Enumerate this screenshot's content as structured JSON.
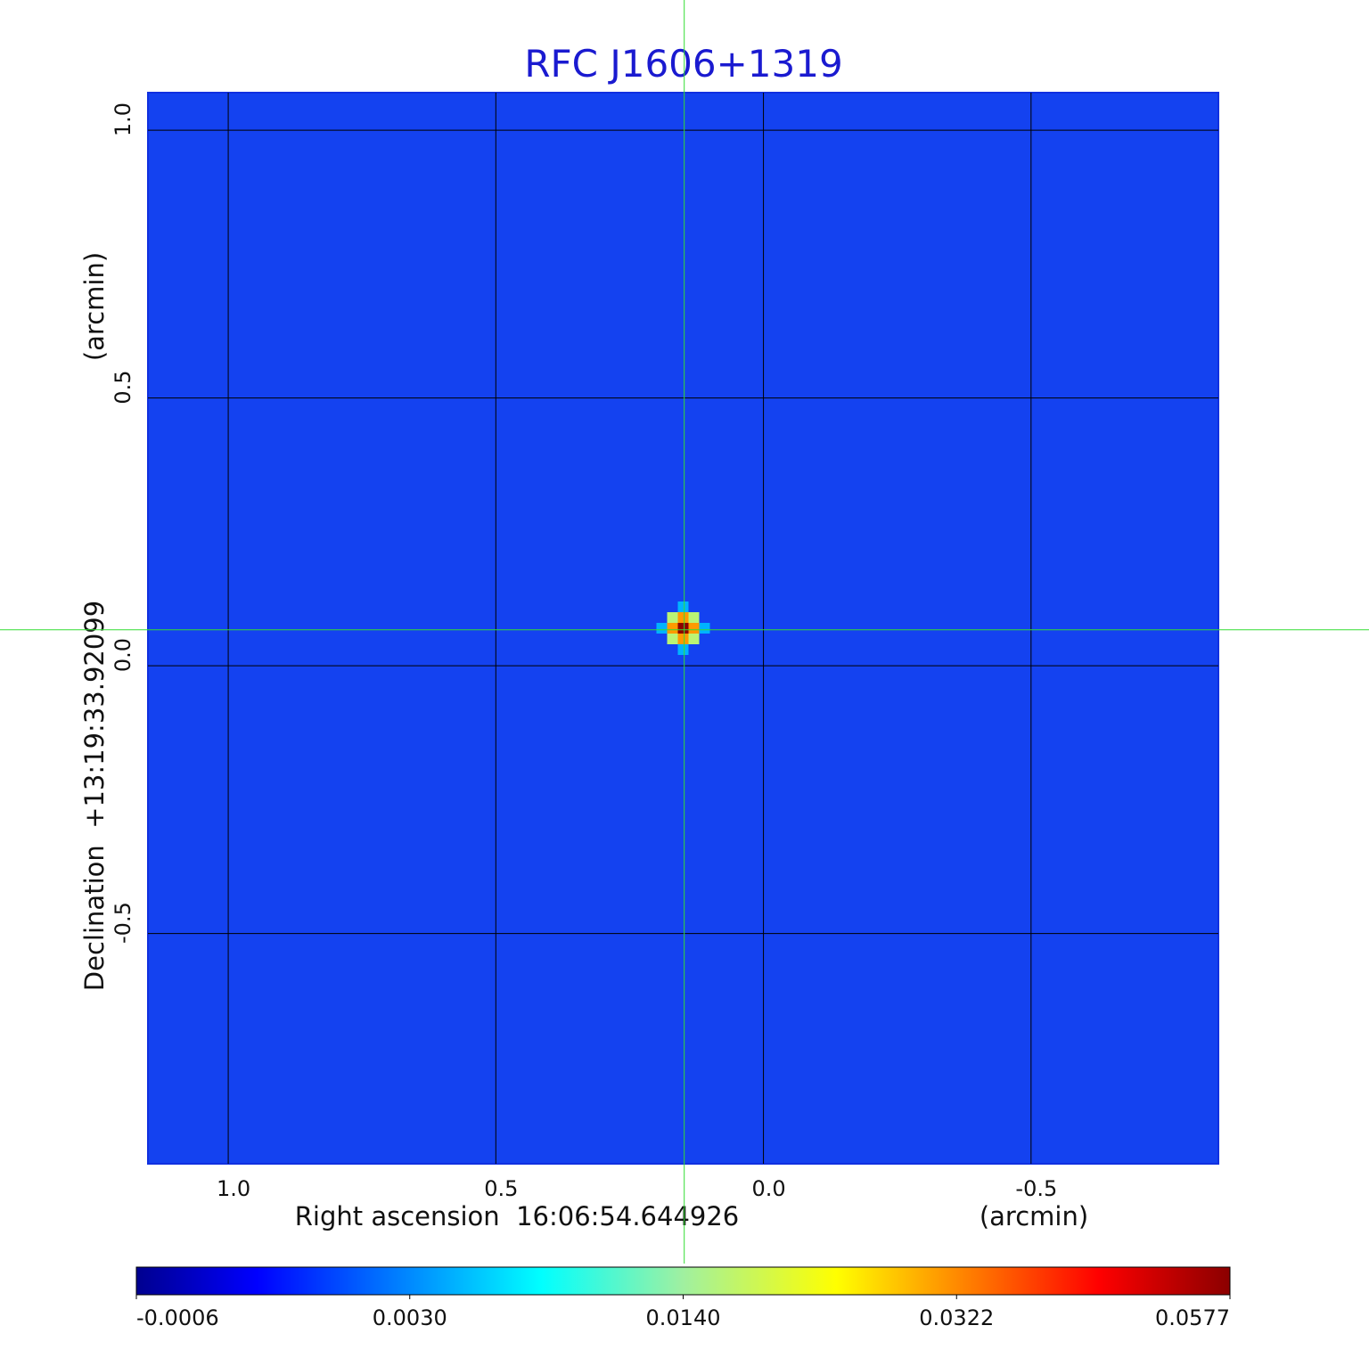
{
  "chart_data": {
    "type": "image",
    "title": "RFC J1606+1319",
    "x_label": "Right ascension  16:06:54.644926",
    "x_unit_label": "(arcmin)",
    "y_label": "Declination  +13:19:33.92099",
    "y_unit_label": "(arcmin)",
    "xlim": [
      1.15,
      -0.85
    ],
    "ylim": [
      -0.93,
      1.07
    ],
    "xticks": [
      {
        "value": 1,
        "label": "1.0"
      },
      0.5,
      {
        "value": 0,
        "label": "0.0"
      },
      -0.5
    ],
    "yticks": [
      {
        "value": 1,
        "label": "1.0"
      },
      0.5,
      {
        "value": 0,
        "label": "0.0"
      },
      -0.5
    ],
    "grid": true,
    "image_color": "#1442f0",
    "source": {
      "x": 0.15,
      "y": 0.07,
      "value": 0.0577
    },
    "crosshair": {
      "x": 0.148,
      "y": 0.067,
      "color": "#33dd33"
    },
    "colorbar_ticks": [
      -0.0006,
      {
        "value": 0.003,
        "label": "0.0030"
      },
      {
        "value": 0.014,
        "label": "0.0140"
      },
      0.0322,
      0.0577
    ]
  }
}
